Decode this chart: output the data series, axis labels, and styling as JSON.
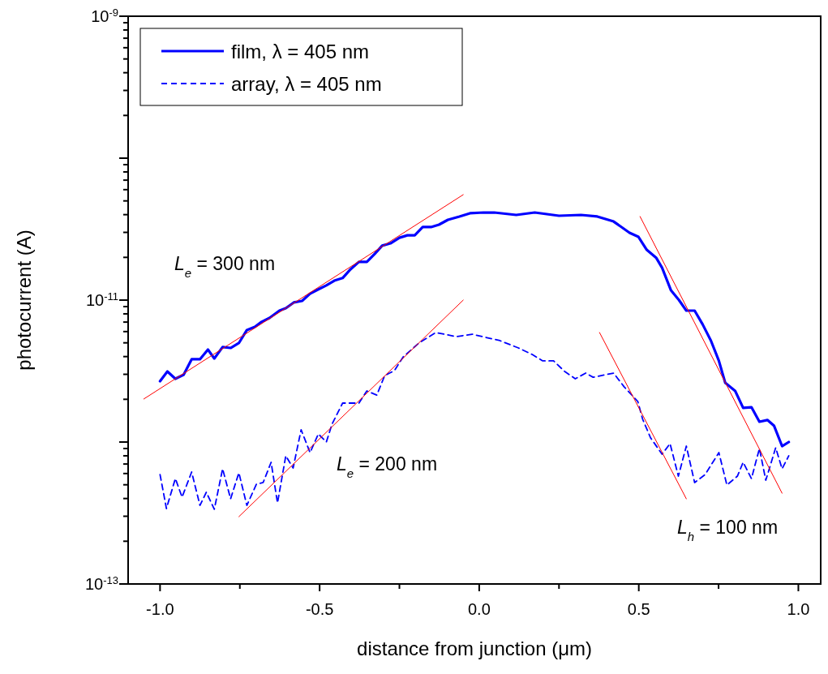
{
  "chart_data": {
    "type": "line",
    "xlabel": "distance from junction (μm)",
    "ylabel": "photocurrent (A)",
    "log": "y",
    "xlim": [
      -1.1,
      1.07
    ],
    "ylim": [
      1e-13,
      1e-09
    ],
    "xticks": [
      {
        "value": -1,
        "label": "-1.0"
      },
      {
        "value": -0.75,
        "label": null
      },
      {
        "value": -0.5,
        "label": "-0.5"
      },
      {
        "value": -0.25,
        "label": null
      },
      {
        "value": 0,
        "label": "0.0"
      },
      {
        "value": 0.25,
        "label": null
      },
      {
        "value": 0.5,
        "label": "0.5"
      },
      {
        "value": 0.75,
        "label": null
      },
      {
        "value": 1,
        "label": "1.0"
      }
    ],
    "yticks": [
      {
        "value": 1e-13,
        "label": "10$^{-13}$"
      },
      {
        "value": 2e-13,
        "label": null
      },
      {
        "value": 3e-13,
        "label": null
      },
      {
        "value": 4e-13,
        "label": null
      },
      {
        "value": 5e-13,
        "label": null
      },
      {
        "value": 6e-13,
        "label": null
      },
      {
        "value": 7e-13,
        "label": null
      },
      {
        "value": 8e-13,
        "label": null
      },
      {
        "value": 9e-13,
        "label": null
      },
      {
        "value": 1e-12,
        "label": null
      },
      {
        "value": 2e-12,
        "label": null
      },
      {
        "value": 3e-12,
        "label": null
      },
      {
        "value": 4e-12,
        "label": null
      },
      {
        "value": 5e-12,
        "label": null
      },
      {
        "value": 6e-12,
        "label": null
      },
      {
        "value": 7e-12,
        "label": null
      },
      {
        "value": 8e-12,
        "label": null
      },
      {
        "value": 9e-12,
        "label": null
      },
      {
        "value": 1e-11,
        "label": "10$^{-11}$"
      },
      {
        "value": 2e-11,
        "label": null
      },
      {
        "value": 3e-11,
        "label": null
      },
      {
        "value": 4e-11,
        "label": null
      },
      {
        "value": 5e-11,
        "label": null
      },
      {
        "value": 6e-11,
        "label": null
      },
      {
        "value": 7e-11,
        "label": null
      },
      {
        "value": 8e-11,
        "label": null
      },
      {
        "value": 9e-11,
        "label": null
      },
      {
        "value": 1e-10,
        "label": null
      },
      {
        "value": 2e-10,
        "label": null
      },
      {
        "value": 3e-10,
        "label": null
      },
      {
        "value": 4e-10,
        "label": null
      },
      {
        "value": 5e-10,
        "label": null
      },
      {
        "value": 6e-10,
        "label": null
      },
      {
        "value": 7e-10,
        "label": null
      },
      {
        "value": 8e-10,
        "label": null
      },
      {
        "value": 9e-10,
        "label": null
      },
      {
        "value": 1e-09,
        "label": "10$^{-9}$"
      }
    ],
    "grid": false,
    "legend": "top left",
    "marker": "none",
    "series": [
      {
        "name": "film, λ = 405 nm",
        "color": "#0000ff",
        "line_style": "solid",
        "x": [
          -1.0,
          -0.977,
          -0.952,
          -0.926,
          -0.901,
          -0.875,
          -0.85,
          -0.83,
          -0.804,
          -0.779,
          -0.753,
          -0.728,
          -0.703,
          -0.682,
          -0.657,
          -0.626,
          -0.606,
          -0.581,
          -0.555,
          -0.53,
          -0.504,
          -0.479,
          -0.454,
          -0.428,
          -0.403,
          -0.377,
          -0.352,
          -0.327,
          -0.304,
          -0.278,
          -0.25,
          -0.225,
          -0.202,
          -0.177,
          -0.151,
          -0.126,
          -0.098,
          -0.062,
          -0.029,
          0.014,
          0.047,
          0.116,
          0.174,
          0.25,
          0.319,
          0.37,
          0.421,
          0.471,
          0.499,
          0.525,
          0.555,
          0.573,
          0.601,
          0.626,
          0.649,
          0.675,
          0.7,
          0.726,
          0.751,
          0.771,
          0.802,
          0.827,
          0.853,
          0.878,
          0.903,
          0.924,
          0.949,
          0.97
        ],
        "values": [
          2.68e-12,
          3.14e-12,
          2.79e-12,
          2.98e-12,
          3.83e-12,
          3.83e-12,
          4.48e-12,
          3.88e-12,
          4.67e-12,
          4.6e-12,
          4.98e-12,
          6.15e-12,
          6.48e-12,
          7.02e-12,
          7.49e-12,
          8.43e-12,
          8.77e-12,
          9.62e-12,
          9.87e-12,
          1.11e-11,
          1.19e-11,
          1.27e-11,
          1.37e-11,
          1.43e-11,
          1.65e-11,
          1.86e-11,
          1.86e-11,
          2.12e-11,
          2.42e-11,
          2.51e-11,
          2.75e-11,
          2.86e-11,
          2.86e-11,
          3.27e-11,
          3.27e-11,
          3.4e-11,
          3.68e-11,
          3.88e-11,
          4.09e-11,
          4.14e-11,
          4.14e-11,
          3.98e-11,
          4.14e-11,
          3.93e-11,
          3.98e-11,
          3.88e-11,
          3.58e-11,
          2.98e-11,
          2.79e-11,
          2.26e-11,
          1.98e-11,
          1.69e-11,
          1.17e-11,
          1e-11,
          8.43e-12,
          8.43e-12,
          6.75e-12,
          5.18e-12,
          3.73e-12,
          2.61e-12,
          2.29e-12,
          1.74e-12,
          1.76e-12,
          1.39e-12,
          1.43e-12,
          1.3e-12,
          9.36e-13,
          1e-12
        ]
      },
      {
        "name": "array, λ = 405 nm",
        "color": "#0000ff",
        "line_style": "dashed",
        "x": [
          -1.0,
          -0.98,
          -0.952,
          -0.931,
          -0.901,
          -0.875,
          -0.855,
          -0.83,
          -0.804,
          -0.779,
          -0.753,
          -0.728,
          -0.698,
          -0.677,
          -0.652,
          -0.632,
          -0.606,
          -0.583,
          -0.558,
          -0.53,
          -0.504,
          -0.479,
          -0.461,
          -0.428,
          -0.377,
          -0.352,
          -0.321,
          -0.296,
          -0.266,
          -0.238,
          -0.189,
          -0.136,
          -0.072,
          -0.022,
          0.065,
          0.123,
          0.166,
          0.199,
          0.233,
          0.268,
          0.301,
          0.334,
          0.357,
          0.421,
          0.454,
          0.497,
          0.512,
          0.537,
          0.573,
          0.598,
          0.624,
          0.649,
          0.675,
          0.708,
          0.751,
          0.776,
          0.809,
          0.827,
          0.853,
          0.878,
          0.898,
          0.929,
          0.949,
          0.97
        ],
        "values": [
          5.9e-13,
          3.4e-13,
          5.53e-13,
          4.09e-13,
          6.15e-13,
          3.58e-13,
          4.43e-13,
          3.36e-13,
          6.48e-13,
          3.98e-13,
          6.07e-13,
          3.58e-13,
          5.05e-13,
          5.18e-13,
          7.2e-13,
          3.72e-13,
          8e-13,
          6.56e-13,
          1.22e-12,
          8.43e-13,
          1.14e-12,
          1e-12,
          1.34e-12,
          1.88e-12,
          1.88e-12,
          2.29e-12,
          2.14e-12,
          2.94e-12,
          3.18e-12,
          3.98e-12,
          4.98e-12,
          5.91e-12,
          5.53e-12,
          5.75e-12,
          5.18e-12,
          4.6e-12,
          4.14e-12,
          3.73e-12,
          3.73e-12,
          3.14e-12,
          2.79e-12,
          3.06e-12,
          2.86e-12,
          3.06e-12,
          2.45e-12,
          1.93e-12,
          1.45e-12,
          1.07e-12,
          8.21e-13,
          9.75e-13,
          5.75e-13,
          9.36e-13,
          5.18e-13,
          5.9e-13,
          8.43e-13,
          4.98e-13,
          5.75e-13,
          7.2e-13,
          5.53e-13,
          9e-13,
          5.38e-13,
          9.12e-13,
          6.48e-13,
          8e-13
        ]
      },
      {
        "type": "line",
        "color": "#ff0000",
        "line_style": "solid",
        "x": [
          -1.051,
          -0.05
        ],
        "values": [
          2.01e-12,
          5.53e-11
        ]
      },
      {
        "type": "line",
        "color": "#ff0000",
        "line_style": "solid",
        "x": [
          -0.753,
          -0.05
        ],
        "values": [
          2.98e-13,
          1e-11
        ]
      },
      {
        "type": "line",
        "color": "#ff0000",
        "line_style": "solid",
        "x": [
          0.377,
          0.649
        ],
        "values": [
          5.91e-12,
          3.98e-13
        ]
      },
      {
        "type": "line",
        "color": "#ff0000",
        "line_style": "solid",
        "x": [
          0.504,
          0.949
        ],
        "values": [
          3.88e-11,
          4.36e-13
        ]
      }
    ],
    "annotations": [
      "L$_{e}$ = 300 nm",
      "L$_{e}$ = 200 nm",
      "L$_{h}$ = 100 nm"
    ]
  }
}
